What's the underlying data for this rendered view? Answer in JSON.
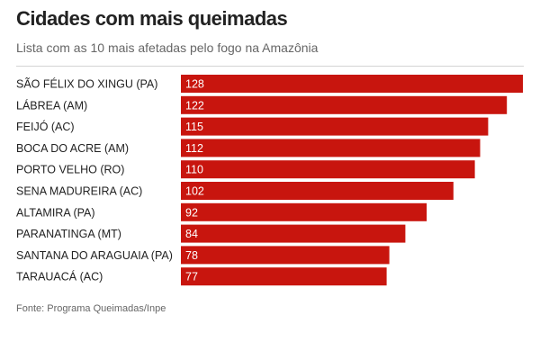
{
  "title": "Cidades com mais queimadas",
  "subtitle": "Lista com as 10 mais afetadas pelo fogo na Amazônia",
  "source": "Fonte: Programa Queimadas/Inpe",
  "colors": {
    "bar": "#c8150e",
    "bar_label": "#ffffff",
    "category_label": "#222222"
  },
  "chart_data": {
    "type": "bar",
    "orientation": "horizontal",
    "title": "Cidades com mais queimadas",
    "subtitle": "Lista com as 10 mais afetadas pelo fogo na Amazônia",
    "categories": [
      "SÃO FÉLIX DO XINGU (PA)",
      "LÁBREA (AM)",
      "FEIJÓ (AC)",
      "BOCA DO ACRE (AM)",
      "PORTO VELHO (RO)",
      "SENA MADUREIRA (AC)",
      "ALTAMIRA (PA)",
      "PARANATINGA (MT)",
      "SANTANA DO ARAGUAIA (PA)",
      "TARAUACÁ (AC)"
    ],
    "values": [
      128,
      122,
      115,
      112,
      110,
      102,
      92,
      84,
      78,
      77
    ],
    "data_labels": true,
    "grid": false,
    "legend": "none"
  }
}
